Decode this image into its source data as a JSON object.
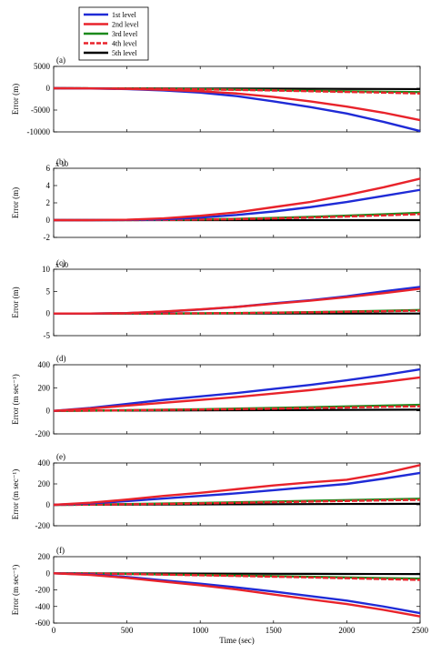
{
  "legend": [
    {
      "name": "1st level",
      "color": "#1f2bd6"
    },
    {
      "name": "2nd level",
      "color": "#e8232b"
    },
    {
      "name": "3rd level",
      "color": "#1b8a1b"
    },
    {
      "name": "4th level",
      "color": "#e8232b",
      "dashed": true
    },
    {
      "name": "5th level",
      "color": "#000000"
    }
  ],
  "chart_data": [
    {
      "type": "line",
      "panel": "(a)",
      "ylabel": "Error (m)",
      "exponent": "",
      "ylim": [
        -10000,
        5000
      ],
      "yticks": [
        -10000,
        -5000,
        0,
        5000
      ],
      "xlim": [
        0,
        2500
      ],
      "x": [
        0,
        250,
        500,
        750,
        1000,
        1250,
        1500,
        1750,
        2000,
        2250,
        2500
      ],
      "series": [
        {
          "name": "1st level",
          "values": [
            0,
            -50,
            -200,
            -500,
            -1000,
            -1800,
            -3000,
            -4300,
            -5800,
            -7700,
            -9800
          ]
        },
        {
          "name": "2nd level",
          "values": [
            0,
            -30,
            -150,
            -350,
            -700,
            -1200,
            -2000,
            -3000,
            -4200,
            -5600,
            -7300
          ]
        },
        {
          "name": "3rd level",
          "values": [
            0,
            -20,
            -60,
            -120,
            -200,
            -300,
            -420,
            -550,
            -700,
            -800,
            -900
          ]
        },
        {
          "name": "4th level",
          "values": [
            0,
            -30,
            -80,
            -150,
            -250,
            -380,
            -520,
            -680,
            -850,
            -1000,
            -1200
          ]
        },
        {
          "name": "5th level",
          "values": [
            0,
            -10,
            -20,
            -40,
            -60,
            -80,
            -100,
            -120,
            -150,
            -170,
            -200
          ]
        }
      ]
    },
    {
      "type": "line",
      "panel": "(b)",
      "ylabel": "Error (m)",
      "exponent": "x 10",
      "ylim": [
        -2,
        6
      ],
      "yticks": [
        -2,
        0,
        2,
        4,
        6
      ],
      "xlim": [
        0,
        2500
      ],
      "x": [
        0,
        250,
        500,
        750,
        1000,
        1250,
        1500,
        1750,
        2000,
        2250,
        2500
      ],
      "series": [
        {
          "name": "1st level",
          "values": [
            0,
            0,
            0.02,
            0.1,
            0.3,
            0.6,
            1.0,
            1.5,
            2.1,
            2.8,
            3.5
          ]
        },
        {
          "name": "2nd level",
          "values": [
            0,
            0,
            0.05,
            0.2,
            0.5,
            0.9,
            1.5,
            2.1,
            2.9,
            3.8,
            4.8
          ]
        },
        {
          "name": "3rd level",
          "values": [
            0,
            0,
            0.01,
            0.03,
            0.08,
            0.15,
            0.25,
            0.38,
            0.52,
            0.68,
            0.85
          ]
        },
        {
          "name": "4th level",
          "values": [
            0,
            0,
            0.01,
            0.02,
            0.06,
            0.12,
            0.2,
            0.3,
            0.42,
            0.55,
            0.7
          ]
        },
        {
          "name": "5th level",
          "values": [
            0,
            0,
            0,
            0,
            0,
            0,
            0,
            0,
            0,
            0,
            0
          ]
        }
      ]
    },
    {
      "type": "line",
      "panel": "(c)",
      "ylabel": "Error (m)",
      "exponent": "x 10",
      "ylim": [
        -5,
        10
      ],
      "yticks": [
        -5,
        0,
        5,
        10
      ],
      "xlim": [
        0,
        2500
      ],
      "x": [
        0,
        250,
        500,
        750,
        1000,
        1250,
        1500,
        1750,
        2000,
        2250,
        2500
      ],
      "series": [
        {
          "name": "1st level",
          "values": [
            0,
            0,
            0.1,
            0.4,
            0.9,
            1.5,
            2.3,
            3.0,
            3.9,
            5.0,
            6.0
          ]
        },
        {
          "name": "2nd level",
          "values": [
            0,
            0,
            0.1,
            0.45,
            0.95,
            1.5,
            2.2,
            2.9,
            3.7,
            4.6,
            5.6
          ]
        },
        {
          "name": "3rd level",
          "values": [
            0,
            0,
            0,
            0.02,
            0.05,
            0.1,
            0.2,
            0.3,
            0.45,
            0.6,
            0.8
          ]
        },
        {
          "name": "4th level",
          "values": [
            0,
            0,
            0,
            0.02,
            0.05,
            0.1,
            0.18,
            0.27,
            0.4,
            0.52,
            0.65
          ]
        },
        {
          "name": "5th level",
          "values": [
            0,
            0,
            0,
            0,
            0,
            0,
            0,
            0,
            0,
            0,
            0
          ]
        }
      ]
    },
    {
      "type": "line",
      "panel": "(d)",
      "ylabel": "Error (m sec⁻¹)",
      "exponent": "",
      "ylim": [
        -200,
        400
      ],
      "yticks": [
        -200,
        0,
        200,
        400
      ],
      "xlim": [
        0,
        2500
      ],
      "x": [
        0,
        250,
        500,
        750,
        1000,
        1250,
        1500,
        1750,
        2000,
        2250,
        2500
      ],
      "series": [
        {
          "name": "1st level",
          "values": [
            0,
            25,
            60,
            95,
            125,
            155,
            190,
            225,
            265,
            310,
            360
          ]
        },
        {
          "name": "2nd level",
          "values": [
            0,
            20,
            45,
            70,
            95,
            120,
            150,
            180,
            215,
            250,
            290
          ]
        },
        {
          "name": "3rd level",
          "values": [
            0,
            3,
            6,
            10,
            14,
            19,
            25,
            31,
            38,
            45,
            52
          ]
        },
        {
          "name": "4th level",
          "values": [
            0,
            2,
            5,
            8,
            11,
            15,
            19,
            24,
            29,
            35,
            40
          ]
        },
        {
          "name": "5th level",
          "values": [
            0,
            1,
            2,
            3,
            4,
            5,
            6,
            7,
            8,
            9,
            10
          ]
        }
      ]
    },
    {
      "type": "line",
      "panel": "(e)",
      "ylabel": "Error (m sec⁻¹)",
      "exponent": "",
      "ylim": [
        -200,
        400
      ],
      "yticks": [
        -200,
        0,
        200,
        400
      ],
      "xlim": [
        0,
        2500
      ],
      "x": [
        0,
        250,
        500,
        750,
        1000,
        1250,
        1500,
        1750,
        2000,
        2250,
        2500
      ],
      "series": [
        {
          "name": "1st level",
          "values": [
            0,
            15,
            35,
            60,
            85,
            110,
            140,
            170,
            200,
            250,
            305
          ]
        },
        {
          "name": "2nd level",
          "values": [
            0,
            20,
            50,
            85,
            115,
            150,
            185,
            215,
            240,
            300,
            380
          ]
        },
        {
          "name": "3rd level",
          "values": [
            0,
            3,
            7,
            12,
            18,
            24,
            31,
            38,
            45,
            52,
            58
          ]
        },
        {
          "name": "4th level",
          "values": [
            0,
            2,
            5,
            9,
            14,
            19,
            25,
            31,
            37,
            43,
            48
          ]
        },
        {
          "name": "5th level",
          "values": [
            0,
            1,
            2,
            3,
            4,
            5,
            6,
            7,
            8,
            9,
            10
          ]
        }
      ]
    },
    {
      "type": "line",
      "panel": "(f)",
      "ylabel": "Error (m sec⁻¹)",
      "exponent": "",
      "ylim": [
        -600,
        200
      ],
      "yticks": [
        -600,
        -400,
        -200,
        0,
        200
      ],
      "xlim": [
        0,
        2500
      ],
      "xticks": [
        0,
        500,
        1000,
        1500,
        2000,
        2500
      ],
      "xlabel": "Time (sec)",
      "x": [
        0,
        250,
        500,
        750,
        1000,
        1250,
        1500,
        1750,
        2000,
        2250,
        2500
      ],
      "series": [
        {
          "name": "1st level",
          "values": [
            0,
            -15,
            -45,
            -85,
            -125,
            -170,
            -220,
            -275,
            -330,
            -400,
            -480
          ]
        },
        {
          "name": "2nd level",
          "values": [
            0,
            -20,
            -55,
            -100,
            -145,
            -195,
            -255,
            -315,
            -370,
            -440,
            -520
          ]
        },
        {
          "name": "3rd level",
          "values": [
            0,
            -3,
            -8,
            -14,
            -20,
            -27,
            -34,
            -42,
            -50,
            -58,
            -65
          ]
        },
        {
          "name": "4th level",
          "values": [
            0,
            -3,
            -9,
            -16,
            -24,
            -32,
            -41,
            -50,
            -60,
            -70,
            -80
          ]
        },
        {
          "name": "5th level",
          "values": [
            0,
            -1,
            -2,
            -3,
            -4,
            -5,
            -6,
            -7,
            -8,
            -9,
            -10
          ]
        }
      ]
    }
  ]
}
